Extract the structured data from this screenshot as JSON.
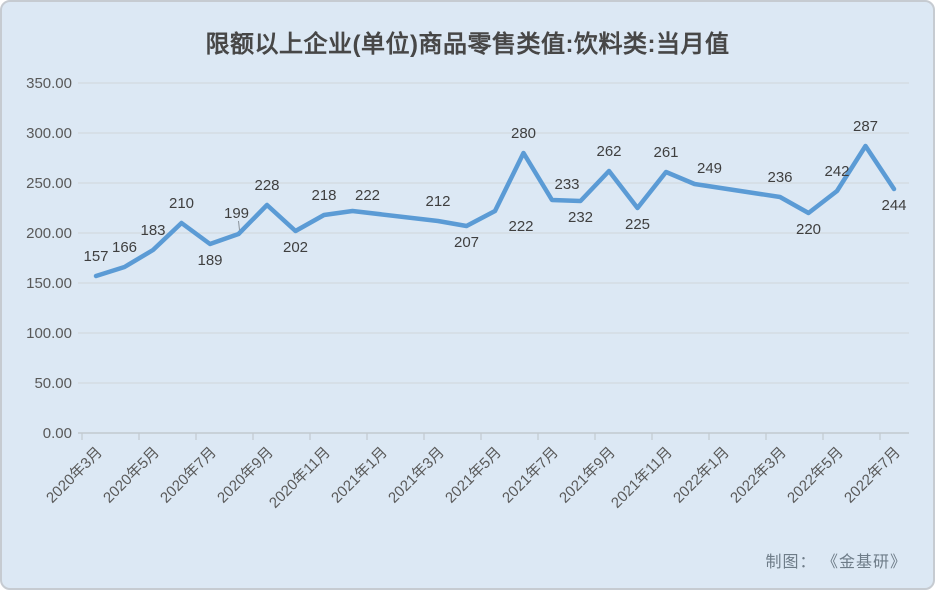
{
  "chart_data": {
    "type": "line",
    "title": "限额以上企业(单位)商品零售类值:饮料类:当月值",
    "categories": [
      "2020年3月",
      "2020年4月",
      "2020年5月",
      "2020年6月",
      "2020年7月",
      "2020年8月",
      "2020年9月",
      "2020年10月",
      "2020年11月",
      "2020年12月",
      "2021年1月",
      "2021年2月",
      "2021年3月",
      "2021年4月",
      "2021年5月",
      "2021年6月",
      "2021年7月",
      "2021年8月",
      "2021年9月",
      "2021年10月",
      "2021年11月",
      "2021年12月",
      "2022年1月",
      "2022年2月",
      "2022年3月",
      "2022年4月",
      "2022年5月",
      "2022年6月",
      "2022年7月"
    ],
    "series": [
      {
        "name": "当月值",
        "values": [
          157,
          166,
          183,
          210,
          189,
          199,
          228,
          202,
          218,
          222,
          null,
          null,
          212,
          207,
          222,
          280,
          233,
          232,
          262,
          225,
          261,
          249,
          null,
          null,
          236,
          220,
          242,
          287,
          244
        ]
      }
    ],
    "data_label_positions": [
      "above",
      "above",
      "above",
      "above",
      "below",
      "above-leader",
      "above",
      "below",
      "above",
      "above-right",
      null,
      null,
      "above",
      "below",
      "below-right",
      "above",
      "above-right",
      "below",
      "above",
      "below",
      "above",
      "above-right",
      null,
      null,
      "above",
      "below",
      "above",
      "above",
      "below"
    ],
    "x_tick_every": 2,
    "x_tick_labels": [
      "2020年3月",
      "2020年5月",
      "2020年7月",
      "2020年9月",
      "2020年11月",
      "2021年1月",
      "2021年3月",
      "2021年5月",
      "2021年7月",
      "2021年9月",
      "2021年11月",
      "2022年1月",
      "2022年3月",
      "2022年5月",
      "2022年7月"
    ],
    "ylim": [
      0,
      350
    ],
    "y_tick_step": 50,
    "y_tick_labels": [
      "0.00",
      "50.00",
      "100.00",
      "150.00",
      "200.00",
      "250.00",
      "300.00",
      "350.00"
    ],
    "grid": true,
    "legend": "none",
    "xlabel": "",
    "ylabel": ""
  },
  "footer": {
    "credit": "制图： 《金基研》"
  },
  "colors": {
    "background": "#dce8f4",
    "line": "#5b9bd5",
    "grid": "#d0d6da",
    "axis": "#c2c9cf",
    "data_label": "#3f3f3f",
    "tick_text": "#595959",
    "title_text": "#474747",
    "footer_text": "#6e7c88",
    "leader_line": "#8a929a"
  }
}
